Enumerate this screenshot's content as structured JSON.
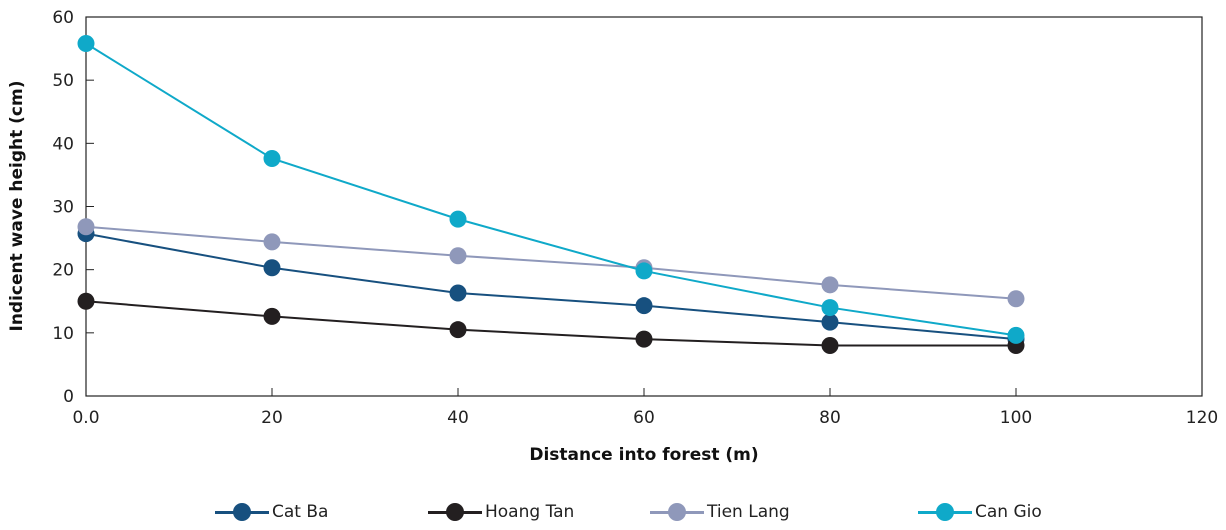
{
  "chart_data": {
    "type": "line",
    "xlabel": "Distance into forest (m)",
    "ylabel": "Indicent wave height (cm)",
    "xlim": [
      0,
      120
    ],
    "ylim": [
      0,
      60
    ],
    "xticks": [
      "0.0",
      "20",
      "40",
      "60",
      "80",
      "100",
      "120"
    ],
    "yticks": [
      "0",
      "10",
      "20",
      "30",
      "40",
      "50",
      "60"
    ],
    "x": [
      0,
      20,
      40,
      60,
      80,
      100
    ],
    "grid": false,
    "legend_position": "bottom",
    "series": [
      {
        "name": "Cat Ba",
        "color": "#17507f",
        "values": [
          25.7,
          20.3,
          16.3,
          14.3,
          11.7,
          9.0
        ]
      },
      {
        "name": "Hoang Tan",
        "color": "#231f20",
        "values": [
          15.0,
          12.6,
          10.5,
          9.0,
          8.0,
          8.0
        ]
      },
      {
        "name": "Tien Lang",
        "color": "#8f98ba",
        "values": [
          26.8,
          24.4,
          22.2,
          20.3,
          17.6,
          15.4
        ]
      },
      {
        "name": "Can Gio",
        "color": "#0fa9c9",
        "values": [
          55.8,
          37.6,
          28.0,
          19.8,
          14.0,
          9.6
        ]
      }
    ]
  }
}
